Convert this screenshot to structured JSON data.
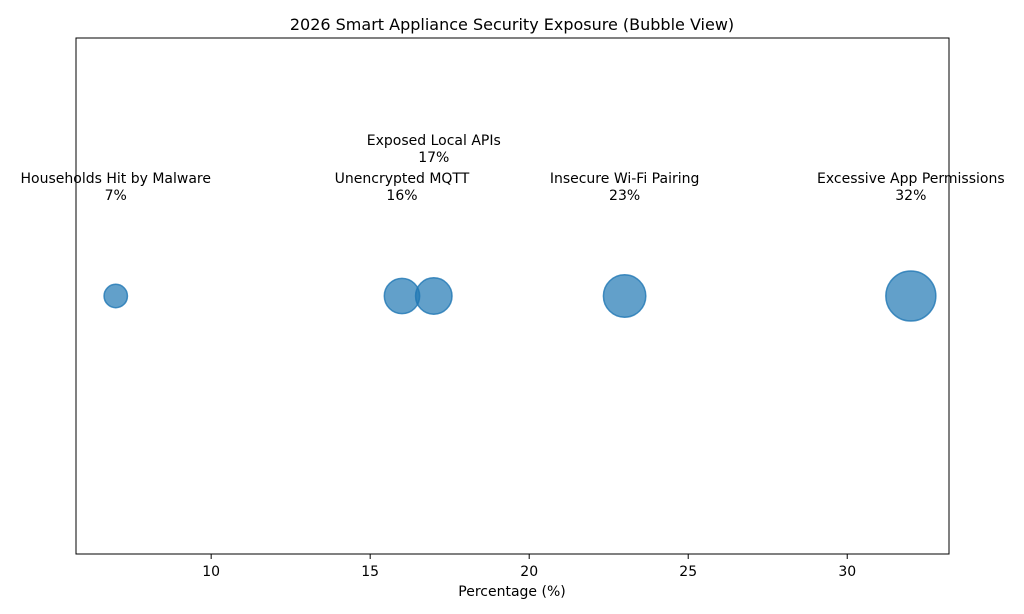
{
  "chart_data": {
    "type": "scatter",
    "title": "2026 Smart Appliance Security Exposure (Bubble View)",
    "xlabel": "Percentage (%)",
    "ylabel": "",
    "xlim": [
      5.75,
      33.2
    ],
    "xticks": [
      10,
      15,
      20,
      25,
      30
    ],
    "yticks_visible": false,
    "grid": false,
    "bubble_color": "#1f77b4",
    "bubble_alpha": 0.7,
    "points": [
      {
        "label": "Households Hit by Malware",
        "x": 7,
        "value_label": "7%"
      },
      {
        "label": "Unencrypted MQTT",
        "x": 16,
        "value_label": "16%"
      },
      {
        "label": "Exposed Local APIs",
        "x": 17,
        "value_label": "17%"
      },
      {
        "label": "Insecure Wi-Fi Pairing",
        "x": 23,
        "value_label": "23%"
      },
      {
        "label": "Excessive App Permissions",
        "x": 32,
        "value_label": "32%"
      }
    ]
  }
}
